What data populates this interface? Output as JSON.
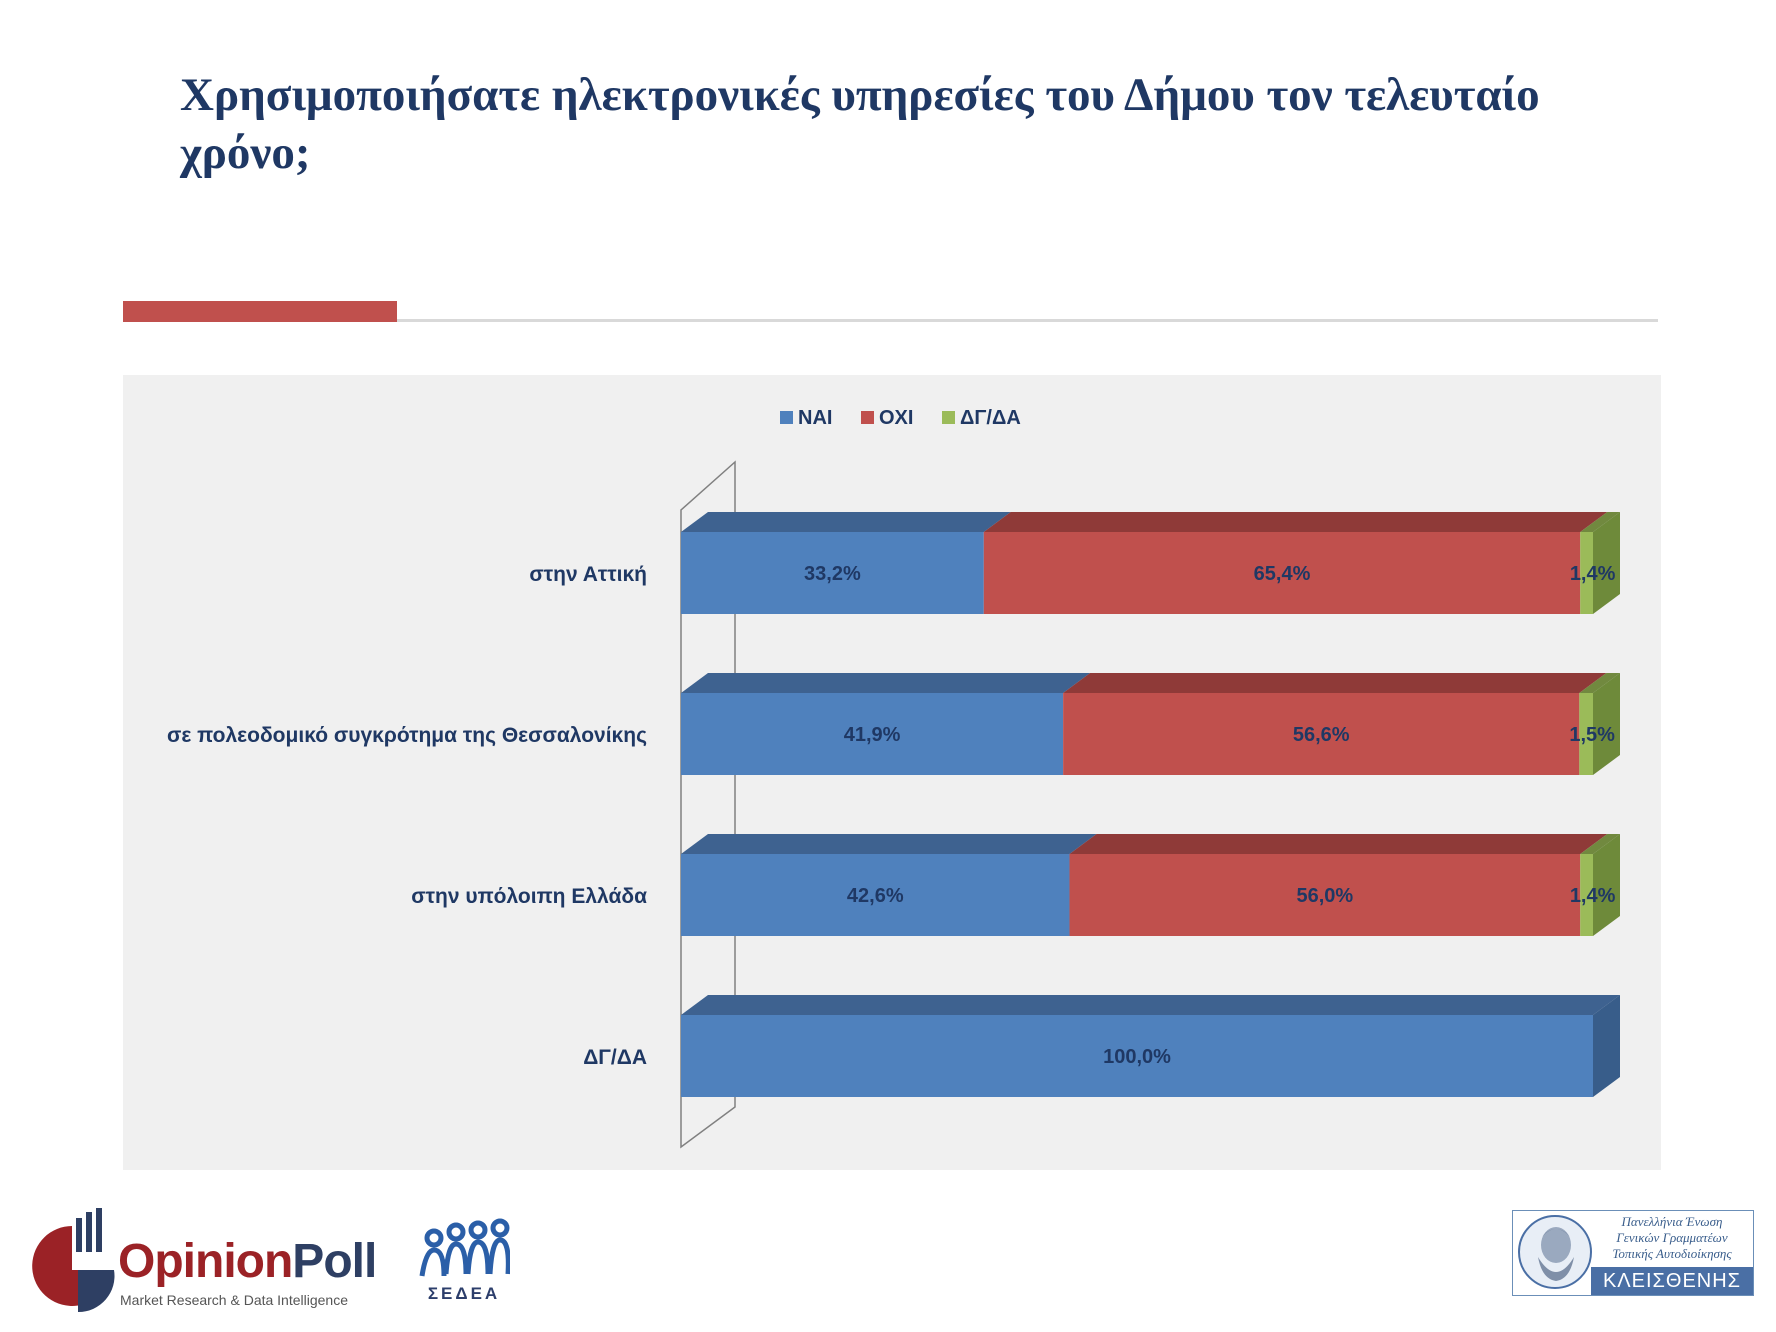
{
  "slide": {
    "title": "Χρησιμοποιήσατε ηλεκτρονικές υπηρεσίες του Δήμου τον τελευταίο χρόνο;"
  },
  "chart_data": {
    "type": "bar",
    "orientation": "horizontal",
    "stacked": true,
    "style": "3d",
    "title": "",
    "xlabel": "",
    "ylabel": "",
    "xlim": [
      0,
      100
    ],
    "legend_position": "top",
    "categories": [
      "στην Αττική",
      "σε πολεοδομικό συγκρότημα της Θεσσαλονίκης",
      "στην υπόλοιπη Ελλάδα",
      "ΔΓ/ΔΑ"
    ],
    "series": [
      {
        "name": "ΝΑΙ",
        "color": "#4f81bd",
        "top_color": "#3e6290",
        "side_color": "#385d8a",
        "values": [
          33.2,
          41.9,
          42.6,
          100.0
        ],
        "labels": [
          "33,2%",
          "41,9%",
          "42,6%",
          "100,0%"
        ]
      },
      {
        "name": "ΟΧΙ",
        "color": "#c0504d",
        "top_color": "#8f3a38",
        "side_color": "#8f3a38",
        "values": [
          65.4,
          56.6,
          56.0,
          0
        ],
        "labels": [
          "65,4%",
          "56,6%",
          "56,0%",
          ""
        ]
      },
      {
        "name": "ΔΓ/ΔΑ",
        "color": "#9bbb59",
        "top_color": "#71893f",
        "side_color": "#6e8a3a",
        "values": [
          1.4,
          1.5,
          1.4,
          0
        ],
        "labels": [
          "1,4%",
          "1,5%",
          "1,4%",
          ""
        ]
      }
    ],
    "label_color": "#1f3864",
    "category_label_color": "#1f3864"
  },
  "logos": {
    "opinionpoll": {
      "brand_part1": "Opinion",
      "brand_part2": "Poll",
      "tagline": "Market Research & Data Intelligence"
    },
    "sedea": {
      "text": "ΣΕΔΕΑ"
    },
    "kleisthenis": {
      "line1": "Πανελλήνια Ένωση",
      "line2": "Γενικών Γραμματέων",
      "line3": "Τοπικής Αυτοδιοίκησης",
      "name": "ΚΛΕΙΣΘΕΝΗΣ"
    }
  }
}
